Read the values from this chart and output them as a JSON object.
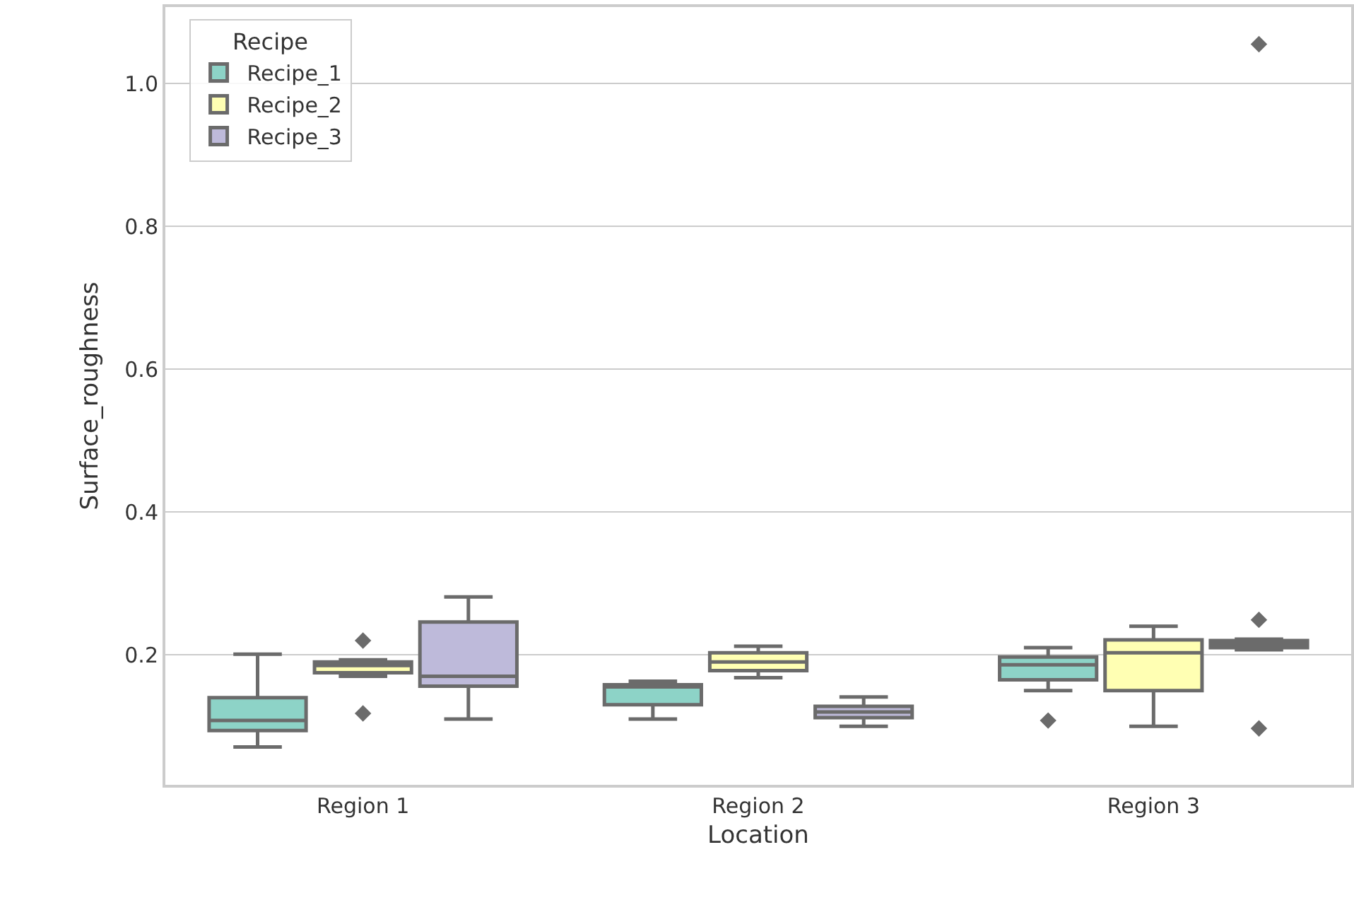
{
  "chart_data": {
    "type": "box",
    "xlabel": "Location",
    "ylabel": "Surface_roughness",
    "legend_title": "Recipe",
    "legend": "top left",
    "grid": "y",
    "marker": "diamond",
    "categories": [
      "Region 1",
      "Region 2",
      "Region 3"
    ],
    "ylim": [
      0.018,
      1.107
    ],
    "yticks": [
      0.2,
      0.4,
      0.6,
      0.8,
      {
        "value": 1,
        "label": "1.0"
      }
    ],
    "series": [
      {
        "name": "Recipe_1",
        "color": "#8dd3c7",
        "boxes": [
          {
            "low": 0.071,
            "q1": 0.094,
            "median": 0.108,
            "q3": 0.14,
            "high": 0.201
          },
          {
            "low": 0.11,
            "q1": 0.13,
            "median": 0.155,
            "q3": 0.158,
            "high": 0.163
          },
          {
            "low": 0.15,
            "q1": 0.165,
            "median": 0.186,
            "q3": 0.197,
            "high": 0.21,
            "outliers": [
              0.108
            ]
          }
        ]
      },
      {
        "name": "Recipe_2",
        "color": "#ffffb3",
        "boxes": [
          {
            "low": 0.17,
            "q1": 0.175,
            "median": 0.185,
            "q3": 0.19,
            "high": 0.193,
            "outliers": [
              0.22,
              0.118
            ]
          },
          {
            "low": 0.168,
            "q1": 0.178,
            "median": 0.19,
            "q3": 0.203,
            "high": 0.212
          },
          {
            "low": 0.1,
            "q1": 0.15,
            "median": 0.203,
            "q3": 0.221,
            "high": 0.24
          }
        ]
      },
      {
        "name": "Recipe_3",
        "color": "#bebada",
        "boxes": [
          {
            "low": 0.11,
            "q1": 0.156,
            "median": 0.17,
            "q3": 0.246,
            "high": 0.281
          },
          {
            "low": 0.1,
            "q1": 0.112,
            "median": 0.12,
            "q3": 0.128,
            "high": 0.141
          },
          {
            "low": 0.207,
            "q1": 0.21,
            "median": 0.215,
            "q3": 0.22,
            "high": 0.222,
            "outliers": [
              0.249,
              0.097,
              1.055
            ]
          }
        ]
      }
    ]
  }
}
